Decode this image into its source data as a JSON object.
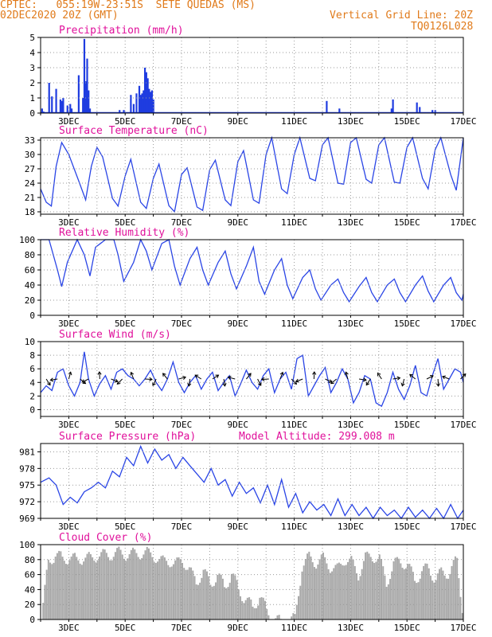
{
  "header": {
    "line1_left": "CPTEC:   055:19W-23:51S  SETE QUEDAS (MS)",
    "line2_left": "02DEC2020 20Z (GMT)",
    "line2_right": "Vertical Grid Line: 20Z",
    "line3_right": "TQ0126L028",
    "color": "#e07a1a"
  },
  "colors": {
    "title": "#e0109b",
    "line": "#2a45e6",
    "bar": "#1f3ce0",
    "cloud": "#a9a9a9",
    "grid": "#9a9a9a"
  },
  "x_axis": {
    "start_day": 2,
    "end_day": 17,
    "tick_labels": [
      "3DEC",
      "5DEC",
      "7DEC",
      "9DEC",
      "11DEC",
      "13DEC",
      "15DEC",
      "17DEC"
    ]
  },
  "chart_data": [
    {
      "type": "bar",
      "title": "Precipitation (mm/h)",
      "ylim": [
        0,
        5
      ],
      "y_ticks": [
        "0",
        "1",
        "2",
        "3",
        "4",
        "5"
      ],
      "x": [
        2.05,
        2.1,
        2.3,
        2.4,
        2.55,
        2.7,
        2.75,
        2.8,
        2.95,
        3.05,
        3.1,
        3.35,
        3.5,
        3.55,
        3.6,
        3.65,
        3.7,
        3.75,
        4.8,
        4.95,
        5.2,
        5.3,
        5.4,
        5.5,
        5.55,
        5.6,
        5.65,
        5.7,
        5.75,
        5.8,
        5.85,
        5.9,
        5.95,
        6.0,
        12.15,
        12.6,
        14.45,
        14.5,
        15.35,
        15.45,
        15.9,
        16.0
      ],
      "values": [
        0.3,
        0.1,
        2.0,
        1.1,
        1.6,
        0.9,
        0.8,
        1.0,
        0.5,
        0.6,
        0.3,
        2.5,
        1.0,
        4.9,
        2.1,
        3.6,
        1.5,
        0.3,
        0.2,
        0.2,
        1.2,
        0.6,
        1.3,
        1.8,
        1.2,
        1.3,
        1.5,
        3.0,
        2.7,
        2.3,
        1.6,
        1.4,
        1.5,
        0.9,
        0.8,
        0.3,
        0.3,
        0.9,
        0.7,
        0.4,
        0.2,
        0.2
      ]
    },
    {
      "type": "line",
      "title": "Surface Temperature (nC)",
      "ylim": [
        17.5,
        33.5
      ],
      "y_ticks": [
        "18",
        "21",
        "24",
        "27",
        "30",
        "33"
      ],
      "x": [
        2.0,
        2.2,
        2.38,
        2.55,
        2.75,
        3.0,
        3.35,
        3.6,
        3.8,
        4.0,
        4.2,
        4.55,
        4.75,
        5.0,
        5.2,
        5.55,
        5.75,
        6.0,
        6.2,
        6.55,
        6.75,
        7.0,
        7.2,
        7.55,
        7.75,
        8.0,
        8.2,
        8.55,
        8.75,
        9.0,
        9.2,
        9.55,
        9.75,
        10.0,
        10.2,
        10.55,
        10.75,
        11.0,
        11.2,
        11.55,
        11.75,
        12.0,
        12.2,
        12.55,
        12.75,
        13.0,
        13.2,
        13.55,
        13.75,
        14.0,
        14.2,
        14.55,
        14.75,
        15.0,
        15.2,
        15.55,
        15.75,
        16.0,
        16.2,
        16.55,
        16.75,
        17.0
      ],
      "values": [
        22.8,
        20.0,
        19.2,
        27.5,
        32.5,
        30.0,
        24.5,
        20.5,
        27.5,
        31.5,
        29.5,
        20.8,
        19.2,
        25.5,
        29.0,
        20.0,
        18.7,
        25.0,
        28.0,
        19.3,
        18.0,
        25.8,
        27.2,
        19.0,
        18.3,
        26.8,
        28.8,
        20.5,
        19.3,
        28.5,
        30.8,
        20.5,
        19.8,
        30.0,
        33.5,
        22.8,
        21.8,
        30.0,
        33.5,
        25.0,
        24.5,
        32.0,
        33.5,
        24.0,
        23.8,
        32.5,
        33.5,
        24.8,
        24.0,
        32.0,
        33.5,
        24.2,
        24.0,
        31.5,
        33.5,
        25.0,
        22.8,
        31.0,
        33.5,
        25.8,
        22.5,
        33.5
      ]
    },
    {
      "type": "line",
      "title": "Relative Humidity (%)",
      "ylim": [
        0,
        100
      ],
      "y_ticks": [
        "0",
        "20",
        "40",
        "60",
        "80",
        "100"
      ],
      "x": [
        2.0,
        2.3,
        2.6,
        2.75,
        2.95,
        3.3,
        3.55,
        3.75,
        3.95,
        4.3,
        4.6,
        4.75,
        4.95,
        5.3,
        5.55,
        5.75,
        5.95,
        6.3,
        6.55,
        6.75,
        6.95,
        7.3,
        7.55,
        7.75,
        7.95,
        8.3,
        8.55,
        8.75,
        8.95,
        9.3,
        9.55,
        9.75,
        9.95,
        10.3,
        10.55,
        10.75,
        10.95,
        11.3,
        11.55,
        11.75,
        11.95,
        12.3,
        12.55,
        12.75,
        12.95,
        13.3,
        13.55,
        13.75,
        13.95,
        14.3,
        14.55,
        14.75,
        14.95,
        15.3,
        15.55,
        15.75,
        15.95,
        16.3,
        16.55,
        16.75,
        16.95,
        17.0
      ],
      "values": [
        100,
        100,
        60,
        38,
        70,
        100,
        80,
        52,
        90,
        100,
        100,
        80,
        45,
        70,
        100,
        85,
        60,
        95,
        100,
        65,
        40,
        75,
        90,
        60,
        40,
        70,
        85,
        55,
        35,
        65,
        90,
        45,
        28,
        60,
        75,
        40,
        22,
        50,
        60,
        35,
        20,
        40,
        48,
        30,
        18,
        38,
        50,
        30,
        18,
        40,
        48,
        30,
        18,
        40,
        52,
        32,
        18,
        40,
        50,
        30,
        20,
        28
      ]
    },
    {
      "type": "line",
      "title": "Surface Wind (m/s)",
      "ylim": [
        -1,
        10
      ],
      "y_ticks": [
        "0",
        "2",
        "4",
        "6",
        "8",
        "10"
      ],
      "x": [
        2.0,
        2.2,
        2.4,
        2.6,
        2.8,
        3.0,
        3.2,
        3.4,
        3.55,
        3.7,
        3.9,
        4.1,
        4.3,
        4.5,
        4.7,
        4.9,
        5.1,
        5.3,
        5.5,
        5.7,
        5.9,
        6.1,
        6.3,
        6.5,
        6.7,
        6.9,
        7.1,
        7.3,
        7.5,
        7.7,
        7.9,
        8.1,
        8.3,
        8.5,
        8.7,
        8.9,
        9.1,
        9.3,
        9.5,
        9.7,
        9.9,
        10.1,
        10.3,
        10.5,
        10.7,
        10.9,
        11.1,
        11.3,
        11.5,
        11.7,
        11.9,
        12.1,
        12.3,
        12.5,
        12.7,
        12.9,
        13.1,
        13.3,
        13.5,
        13.7,
        13.9,
        14.1,
        14.3,
        14.5,
        14.7,
        14.9,
        15.1,
        15.3,
        15.5,
        15.7,
        15.9,
        16.1,
        16.3,
        16.5,
        16.7,
        16.9,
        17.0
      ],
      "values": [
        2.5,
        3.5,
        2.8,
        5.5,
        6.0,
        3.5,
        2.0,
        4.0,
        8.5,
        4.5,
        2.0,
        3.8,
        5.0,
        3.0,
        5.5,
        6.0,
        5.0,
        4.5,
        3.5,
        4.5,
        5.8,
        4.0,
        2.8,
        4.5,
        7.0,
        4.0,
        2.5,
        4.0,
        5.0,
        3.0,
        4.5,
        5.5,
        2.8,
        4.0,
        5.0,
        2.0,
        3.8,
        5.8,
        4.0,
        3.0,
        5.0,
        6.0,
        2.5,
        4.5,
        5.5,
        3.0,
        7.5,
        8.0,
        2.0,
        3.5,
        5.0,
        6.2,
        2.5,
        4.0,
        6.0,
        4.5,
        1.0,
        2.5,
        5.0,
        4.5,
        1.0,
        0.5,
        2.5,
        5.5,
        3.0,
        1.5,
        3.5,
        6.5,
        2.5,
        2.0,
        5.0,
        7.5,
        3.0,
        4.5,
        6.0,
        5.5,
        4.0
      ]
    },
    {
      "type": "line",
      "title": "Surface Pressure (hPa)",
      "annotation": "Model Altitude: 299.008 m",
      "ylim": [
        969,
        982.5
      ],
      "y_ticks": [
        "969",
        "972",
        "975",
        "978",
        "981"
      ],
      "x": [
        2.0,
        2.3,
        2.55,
        2.8,
        3.05,
        3.3,
        3.55,
        3.8,
        4.05,
        4.3,
        4.55,
        4.8,
        5.05,
        5.3,
        5.55,
        5.8,
        6.05,
        6.3,
        6.55,
        6.8,
        7.05,
        7.3,
        7.55,
        7.8,
        8.05,
        8.3,
        8.55,
        8.8,
        9.05,
        9.3,
        9.55,
        9.8,
        10.05,
        10.3,
        10.55,
        10.8,
        11.05,
        11.3,
        11.55,
        11.8,
        12.05,
        12.3,
        12.55,
        12.8,
        13.05,
        13.3,
        13.55,
        13.8,
        14.05,
        14.3,
        14.55,
        14.8,
        15.05,
        15.3,
        15.55,
        15.8,
        16.05,
        16.3,
        16.55,
        16.8,
        17.0
      ],
      "values": [
        975.5,
        976.3,
        975.0,
        971.5,
        972.8,
        971.8,
        973.8,
        974.5,
        975.5,
        974.5,
        977.5,
        976.5,
        980.0,
        978.5,
        982.0,
        979.0,
        981.5,
        979.5,
        980.5,
        978.0,
        980.0,
        978.5,
        977.0,
        975.5,
        978.0,
        975.0,
        976.0,
        973.0,
        975.5,
        973.5,
        974.5,
        971.8,
        975.0,
        971.5,
        976.0,
        971.0,
        973.5,
        970.0,
        972.0,
        970.5,
        971.5,
        969.5,
        972.5,
        969.5,
        971.5,
        969.5,
        971.0,
        969.0,
        971.0,
        969.5,
        970.5,
        969.0,
        971.0,
        969.2,
        970.5,
        968.5,
        970.8,
        968.8,
        971.5,
        969.0,
        970.5
      ]
    },
    {
      "type": "bar",
      "title": "Cloud Cover (%)",
      "ylim": [
        0,
        100
      ],
      "y_ticks": [
        "0",
        "20",
        "40",
        "60",
        "80",
        "100"
      ],
      "x": [
        2.0,
        2.25,
        2.5,
        2.75,
        3.0,
        3.25,
        3.5,
        3.75,
        4.0,
        4.25,
        4.5,
        4.75,
        5.0,
        5.25,
        5.5,
        5.75,
        6.0,
        6.25,
        6.5,
        6.75,
        7.0,
        7.25,
        7.5,
        7.75,
        8.0,
        8.25,
        8.5,
        8.75,
        9.0,
        9.25,
        9.5,
        9.75,
        10.0,
        10.25,
        10.5,
        10.75,
        11.0,
        11.25,
        11.5,
        11.75,
        12.0,
        12.25,
        12.5,
        12.75,
        13.0,
        13.25,
        13.5,
        13.75,
        14.0,
        14.25,
        14.5,
        14.75,
        15.0,
        15.25,
        15.5,
        15.75,
        16.0,
        16.25,
        16.5,
        16.75,
        17.0
      ],
      "values": [
        5,
        88,
        95,
        90,
        92,
        88,
        92,
        90,
        95,
        95,
        96,
        98,
        96,
        96,
        98,
        97,
        95,
        85,
        90,
        80,
        92,
        72,
        62,
        70,
        60,
        65,
        55,
        68,
        50,
        35,
        25,
        40,
        20,
        10,
        5,
        5,
        10,
        80,
        92,
        85,
        90,
        80,
        75,
        90,
        85,
        70,
        90,
        95,
        88,
        60,
        80,
        90,
        78,
        65,
        70,
        80,
        60,
        75,
        70,
        90,
        5
      ]
    }
  ]
}
